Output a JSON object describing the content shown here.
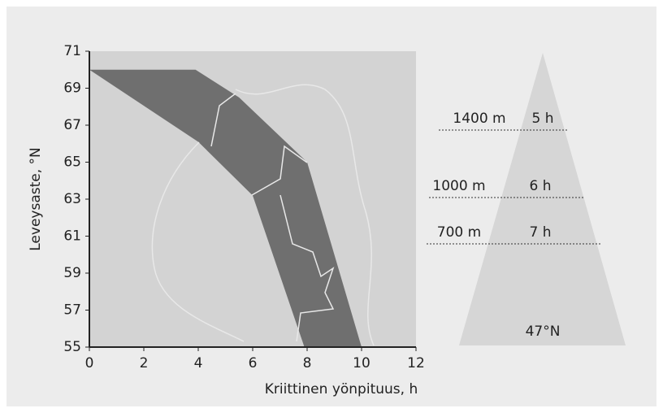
{
  "chart_data": {
    "type": "band",
    "xlabel": "Kriittinen yönpituus, h",
    "ylabel": "Leveysaste, °N",
    "xlim": [
      0,
      12
    ],
    "xticks": [
      0,
      2,
      4,
      6,
      8,
      10,
      12
    ],
    "ylim": [
      55,
      71
    ],
    "yticks": [
      55,
      57,
      59,
      61,
      63,
      65,
      67,
      69,
      71
    ],
    "color": "#6f6f6f",
    "series": [
      {
        "x": [
          0,
          4,
          6,
          7.9
        ],
        "y": [
          70,
          66.1,
          63.2,
          55
        ]
      },
      {
        "x": [
          3.9,
          5.5,
          8,
          10
        ],
        "y": [
          70,
          68.5,
          65,
          55
        ]
      }
    ],
    "side_diagram": {
      "levels": [
        {
          "altitude": "1400 m",
          "night": "5 h"
        },
        {
          "altitude": "1000 m",
          "night": "6 h"
        },
        {
          "altitude": "700 m",
          "night": "7 h"
        }
      ],
      "base": "47°N"
    }
  }
}
